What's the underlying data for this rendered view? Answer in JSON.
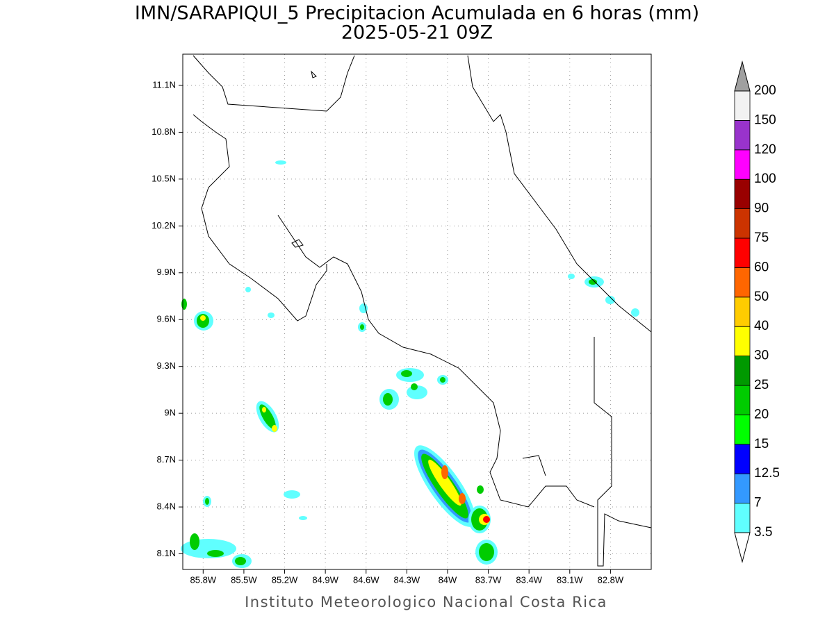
{
  "header": {
    "title": "IMN/SARAPIQUI_5 Precipitacion Acumulada en 6 horas (mm)",
    "subtitle": "2025-05-21 09Z"
  },
  "map": {
    "lonlim": [
      -85.95,
      -82.5
    ],
    "latlim": [
      8.0,
      11.3
    ],
    "grid": true,
    "xticks": [
      {
        "value": -85.8,
        "label": "85.8W"
      },
      {
        "value": -85.5,
        "label": "85.5W"
      },
      {
        "value": -85.2,
        "label": "85.2W"
      },
      {
        "value": -84.9,
        "label": "84.9W"
      },
      {
        "value": -84.6,
        "label": "84.6W"
      },
      {
        "value": -84.3,
        "label": "84.3W"
      },
      {
        "value": -84.0,
        "label": "84W"
      },
      {
        "value": -83.7,
        "label": "83.7W"
      },
      {
        "value": -83.4,
        "label": "83.4W"
      },
      {
        "value": -83.1,
        "label": "83.1W"
      },
      {
        "value": -82.8,
        "label": "82.8W"
      }
    ],
    "yticks": [
      {
        "value": 8.1,
        "label": "8.1N"
      },
      {
        "value": 8.4,
        "label": "8.4N"
      },
      {
        "value": 8.7,
        "label": "8.7N"
      },
      {
        "value": 9.0,
        "label": "9N"
      },
      {
        "value": 9.3,
        "label": "9.3N"
      },
      {
        "value": 9.6,
        "label": "9.6N"
      },
      {
        "value": 9.9,
        "label": "9.9N"
      },
      {
        "value": 10.2,
        "label": "10.2N"
      },
      {
        "value": 10.5,
        "label": "10.5N"
      },
      {
        "value": 10.8,
        "label": "10.8N"
      },
      {
        "value": 11.1,
        "label": "11.1N"
      }
    ]
  },
  "colorbar": {
    "levels": [
      3.5,
      7,
      12.5,
      15,
      20,
      25,
      30,
      40,
      50,
      60,
      75,
      90,
      100,
      120,
      150,
      200
    ],
    "colors": [
      "#60ffff",
      "#3399ff",
      "#0000ff",
      "#00ff00",
      "#00cc00",
      "#009900",
      "#ffff00",
      "#ffcc00",
      "#ff6600",
      "#ff0000",
      "#cc3300",
      "#990000",
      "#ff00ff",
      "#9933cc",
      "#f2f2f2"
    ],
    "under_color": "#ffffff",
    "over_color": "#a0a0a0"
  },
  "footer": "Instituto Meteorologico Nacional Costa Rica"
}
